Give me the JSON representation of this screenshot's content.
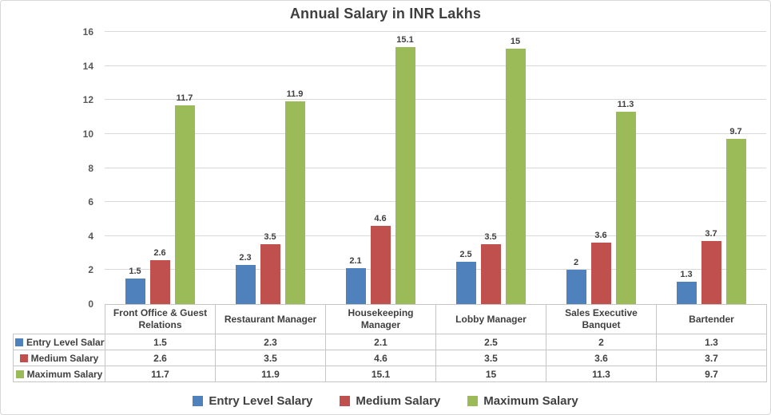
{
  "title": "Annual Salary in INR Lakhs",
  "colors": {
    "entry": "#4f81bd",
    "medium": "#c0504d",
    "maximum": "#9bbb59",
    "text_dark": "#404040",
    "text_tick": "#595959",
    "gridline": "#d9d9d9",
    "table_border": "#c6c6c6"
  },
  "chart_data": {
    "type": "bar",
    "title": "Annual Salary in INR Lakhs",
    "categories": [
      "Front Office & Guest Relations",
      "Restaurant Manager",
      "Housekeeping Manager",
      "Lobby Manager",
      "Sales Executive Banquet",
      "Bartender"
    ],
    "series": [
      {
        "name": "Entry Level Salary",
        "color": "#4f81bd",
        "values": [
          1.5,
          2.3,
          2.1,
          2.5,
          2,
          1.3
        ]
      },
      {
        "name": "Medium Salary",
        "color": "#c0504d",
        "values": [
          2.6,
          3.5,
          4.6,
          3.5,
          3.6,
          3.7
        ]
      },
      {
        "name": "Maximum Salary",
        "color": "#9bbb59",
        "values": [
          11.7,
          11.9,
          15.1,
          15,
          11.3,
          9.7
        ]
      }
    ],
    "xlabel": "",
    "ylabel": "",
    "ylim": [
      0,
      16
    ],
    "yticks": [
      0,
      2,
      4,
      6,
      8,
      10,
      12,
      14,
      16
    ],
    "grid": true,
    "data_labels": true,
    "data_table_shown": true,
    "legend_position": "bottom",
    "legend_labels": [
      "Entry Level Salary",
      "Medium Salary",
      "Maximum Salary"
    ]
  }
}
